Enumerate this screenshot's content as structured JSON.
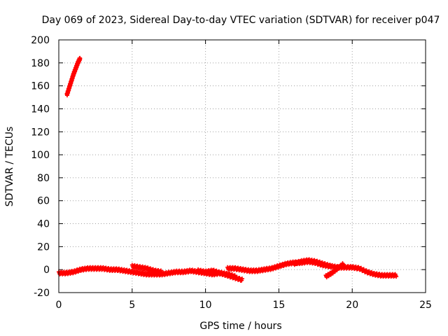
{
  "chart_data": {
    "type": "scatter",
    "title": "Day 069 of 2023, Sidereal Day-to-day VTEC variation (SDTVAR) for receiver p047",
    "xlabel": "GPS time / hours",
    "ylabel": "SDTVAR / TECUs",
    "xlim": [
      0,
      25
    ],
    "ylim": [
      -20,
      200
    ],
    "xticks": [
      "0",
      "5",
      "10",
      "15",
      "20",
      "25"
    ],
    "yticks": [
      "-20",
      "0",
      "20",
      "40",
      "60",
      "80",
      "100",
      "120",
      "140",
      "160",
      "180",
      "200"
    ],
    "grid": true,
    "series": [
      {
        "name": "SDTVAR",
        "color": "#ff0000",
        "marker": "plus",
        "segments": [
          {
            "x": [
              0.55,
              0.7,
              0.85,
              1.0,
              1.15,
              1.3,
              1.45
            ],
            "y": [
              152,
              158,
              164,
              170,
              175,
              180,
              184
            ]
          },
          {
            "x": [
              0.0,
              0.5,
              1.0,
              1.5,
              2.0,
              2.5,
              3.0,
              3.5,
              4.0,
              4.5,
              5.0,
              5.5,
              6.0,
              6.5,
              7.0,
              7.5,
              8.0,
              8.5,
              9.0,
              9.5,
              10.0,
              10.5,
              11.0,
              11.5,
              12.0,
              12.5
            ],
            "y": [
              -3,
              -3,
              -2,
              0,
              1,
              1,
              1,
              0,
              0,
              -1,
              -2,
              -3,
              -4,
              -4,
              -4,
              -3,
              -2,
              -2,
              -1,
              -2,
              -3,
              -4,
              -3,
              -5,
              -7,
              -9
            ]
          },
          {
            "x": [
              5.0,
              5.5,
              6.0,
              6.5,
              7.0
            ],
            "y": [
              3,
              2,
              1,
              -1,
              -2
            ]
          },
          {
            "x": [
              9.5,
              10.0,
              10.5,
              11.0,
              11.5,
              12.0
            ],
            "y": [
              -1,
              -2,
              -1,
              -3,
              -4,
              -6
            ]
          },
          {
            "x": [
              11.5,
              12.0,
              12.5,
              13.0,
              13.5,
              14.0,
              14.5,
              15.0,
              15.5,
              16.0,
              16.5,
              17.0,
              17.5,
              18.0,
              18.5,
              19.0,
              19.5,
              20.0,
              20.5,
              21.0,
              21.5,
              22.0,
              22.5,
              23.0
            ],
            "y": [
              1,
              1,
              0,
              -1,
              -1,
              0,
              1,
              3,
              5,
              6,
              6,
              7,
              6,
              4,
              3,
              2,
              2,
              2,
              1,
              -2,
              -4,
              -5,
              -5,
              -5
            ]
          },
          {
            "x": [
              16.0,
              16.5,
              17.0,
              17.5,
              18.0,
              18.5
            ],
            "y": [
              5,
              7,
              8,
              7,
              5,
              3
            ]
          },
          {
            "x": [
              18.2,
              18.6,
              19.0,
              19.4
            ],
            "y": [
              -6,
              -3,
              1,
              5
            ]
          }
        ]
      }
    ]
  }
}
